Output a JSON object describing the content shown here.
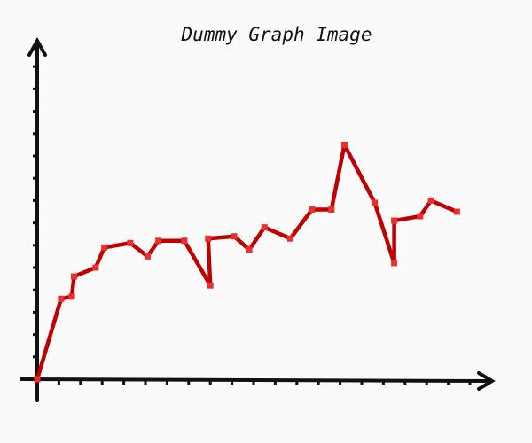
{
  "chart_data": {
    "type": "line",
    "title": "Dummy Graph Image",
    "x": [
      0,
      1.1,
      1.6,
      1.7,
      2.7,
      3.1,
      4.3,
      5.1,
      5.6,
      6.8,
      8.0,
      7.9,
      9.1,
      9.8,
      10.5,
      11.7,
      12.7,
      13.6,
      14.2,
      15.6,
      16.5,
      16.5,
      17.7,
      18.2,
      19.4
    ],
    "series": [
      {
        "color": "#c00000",
        "values": [
          0,
          3.6,
          3.7,
          4.6,
          5.0,
          5.9,
          6.1,
          5.5,
          6.2,
          6.2,
          4.2,
          6.3,
          6.4,
          5.8,
          6.8,
          6.3,
          7.6,
          7.6,
          10.5,
          7.9,
          5.2,
          7.1,
          7.3,
          8.0,
          7.5
        ]
      }
    ],
    "xlim": [
      0,
      21
    ],
    "xticks": [
      1,
      2,
      3,
      4,
      5,
      6,
      7,
      8,
      9,
      10,
      11,
      12,
      13,
      14,
      15,
      16,
      17,
      18,
      19,
      20
    ],
    "ylim": [
      0,
      15
    ],
    "yticks": [
      1,
      2,
      3,
      4,
      5,
      6,
      7,
      8,
      9,
      10,
      11,
      12,
      13,
      14
    ]
  }
}
